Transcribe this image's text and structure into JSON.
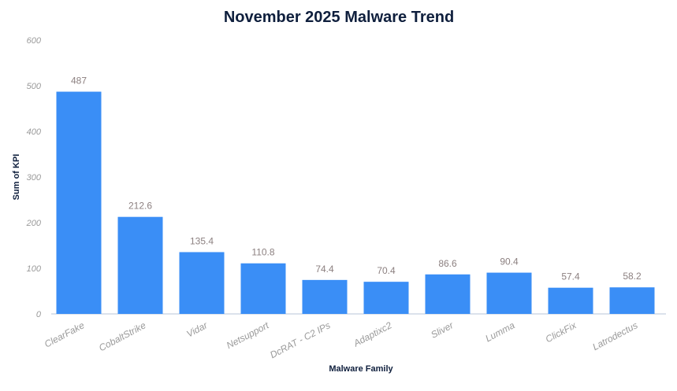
{
  "chart_data": {
    "type": "bar",
    "title": "November 2025 Malware Trend",
    "xlabel": "Malware Family",
    "ylabel": "Sum of KPI",
    "categories": [
      "ClearFake",
      "CobaltStrike",
      "Vidar",
      "Netsupport",
      "DcRAT - C2 IPs",
      "Adaptixc2",
      "Sliver",
      "Lumma",
      "ClickFix",
      "Latrodectus"
    ],
    "values": [
      487,
      212.6,
      135.4,
      110.8,
      74.4,
      70.4,
      86.6,
      90.4,
      57.4,
      58.2
    ],
    "ylim": [
      0,
      600
    ],
    "yticks": [
      0,
      100,
      200,
      300,
      400,
      500,
      600
    ],
    "grid": true,
    "legend": "none",
    "colors": {
      "bar": "#3a8ef6",
      "title": "#0f1f3d",
      "tick": "#9a9a9a",
      "data_label": "#8c8080",
      "axis": "#cfd8e6"
    }
  }
}
